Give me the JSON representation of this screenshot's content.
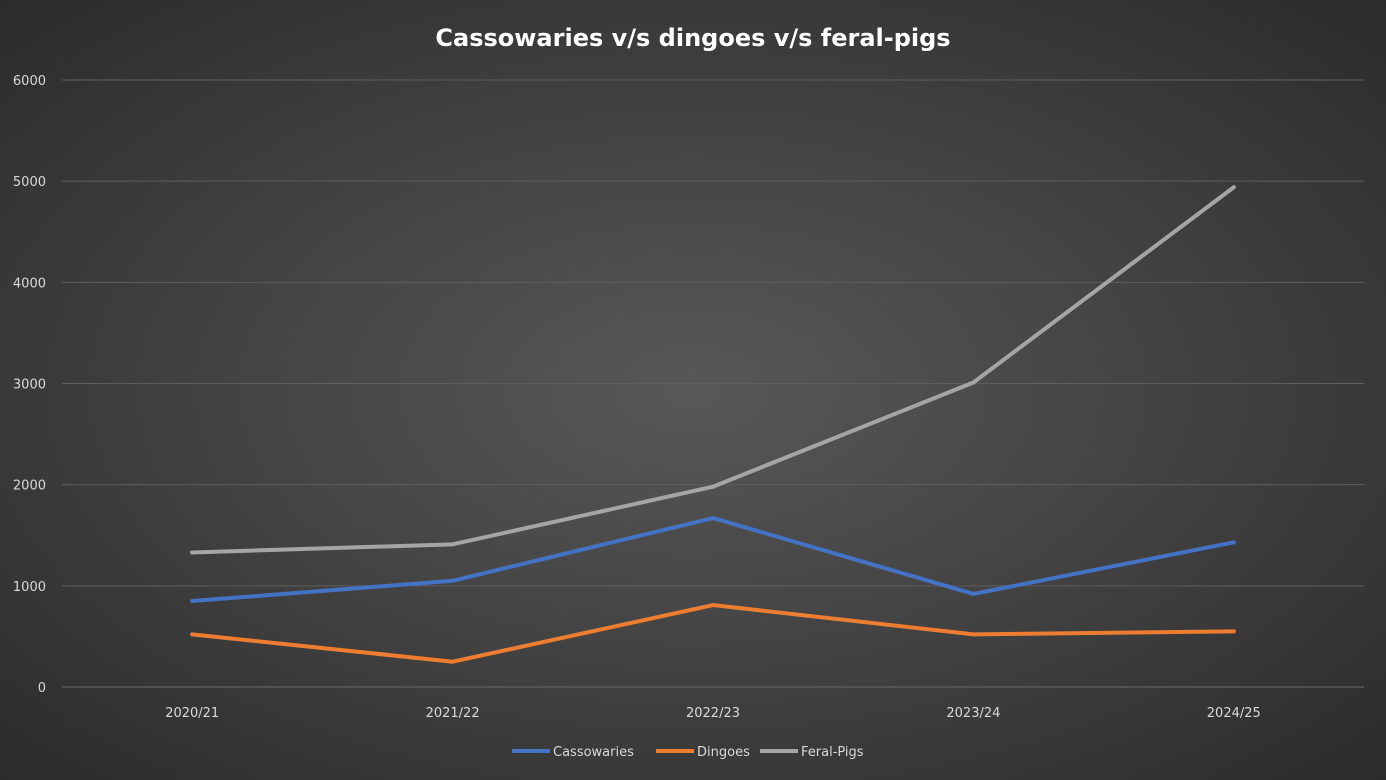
{
  "chart_data": {
    "type": "line",
    "title": "Cassowaries v/s dingoes v/s feral-pigs",
    "xlabel": "",
    "ylabel": "",
    "categories": [
      "2020/21",
      "2021/22",
      "2022/23",
      "2023/24",
      "2024/25"
    ],
    "ylim": [
      0,
      6000
    ],
    "yticks": [
      0,
      1000,
      2000,
      3000,
      4000,
      5000,
      6000
    ],
    "grid": true,
    "legend_position": "bottom",
    "series": [
      {
        "name": "Cassowaries",
        "color": "#4472c4",
        "values": [
          850,
          1050,
          1670,
          920,
          1430
        ]
      },
      {
        "name": "Dingoes",
        "color": "#ed7d31",
        "values": [
          520,
          250,
          810,
          520,
          550
        ]
      },
      {
        "name": "Feral-Pigs",
        "color": "#a5a5a5",
        "values": [
          1330,
          1410,
          1980,
          3010,
          4940
        ]
      }
    ]
  }
}
